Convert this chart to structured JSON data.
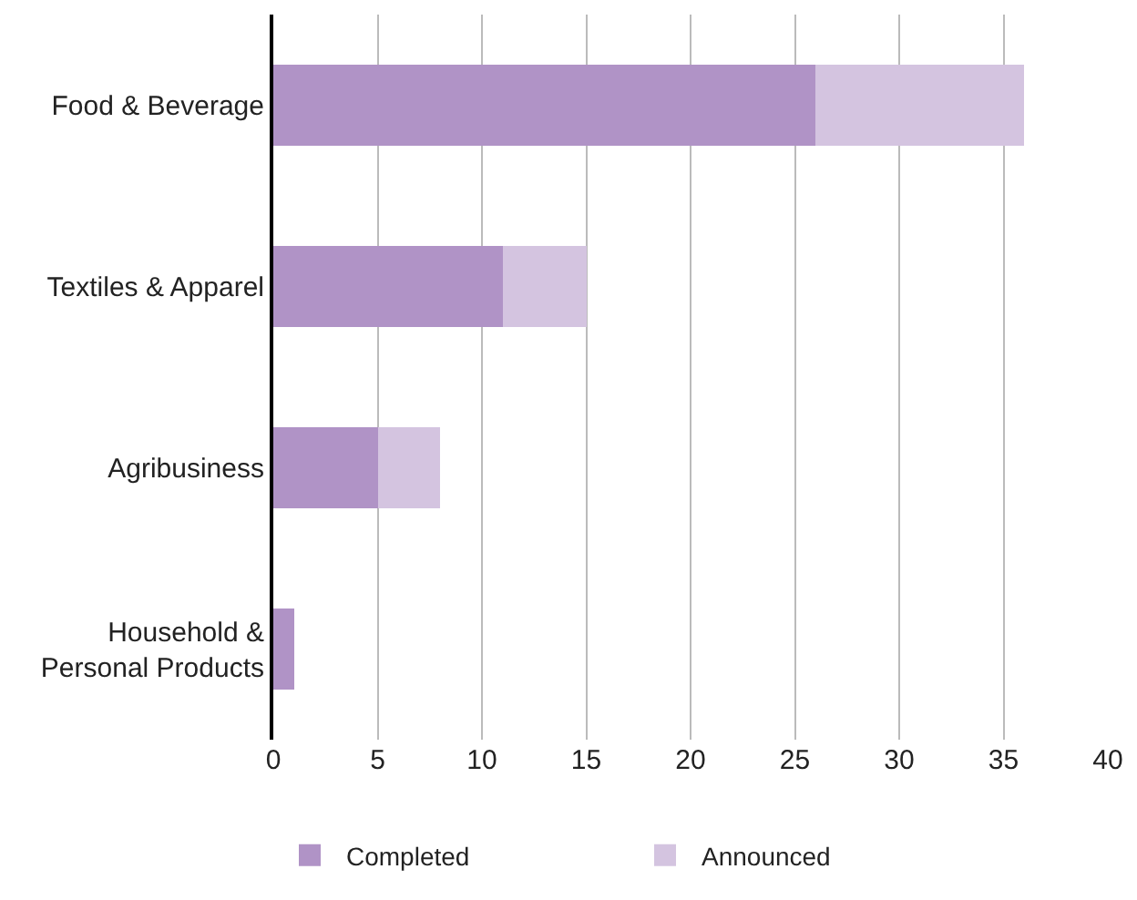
{
  "chart_data": {
    "type": "bar",
    "orientation": "horizontal",
    "stacked": true,
    "categories": [
      "Food & Beverage",
      "Textiles & Apparel",
      "Agribusiness",
      "Household &\nPersonal Products"
    ],
    "series": [
      {
        "name": "Completed",
        "color": "#b093c6",
        "values": [
          26,
          11,
          5,
          1
        ]
      },
      {
        "name": "Announced",
        "color": "#d4c4e0",
        "values": [
          10,
          4,
          3,
          0
        ]
      }
    ],
    "xlim": [
      0,
      40
    ],
    "xticks": [
      0,
      5,
      10,
      15,
      20,
      25,
      30,
      35,
      40
    ],
    "grid": "x",
    "legend": "bottom"
  }
}
